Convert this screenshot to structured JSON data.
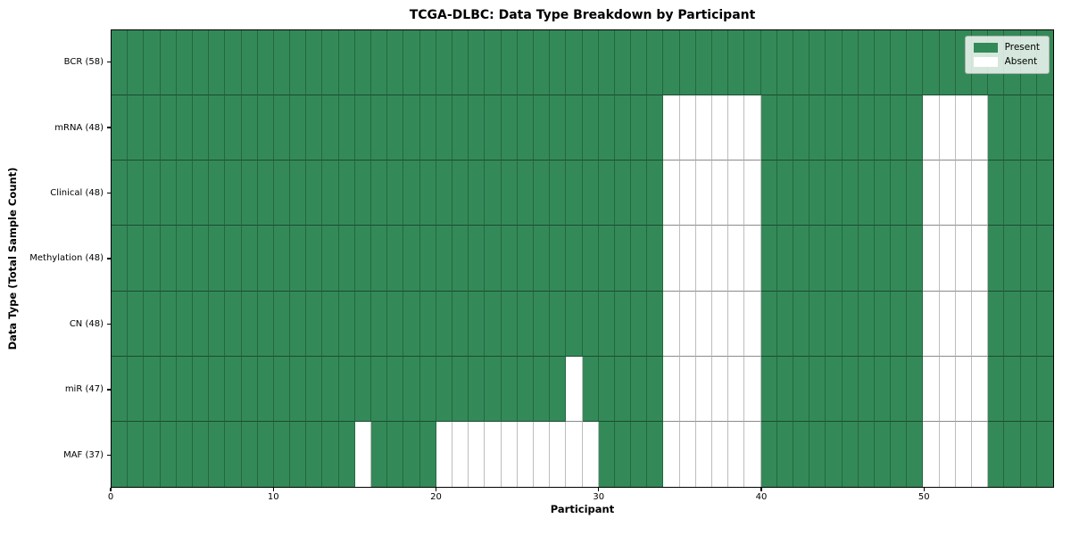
{
  "chart_data": {
    "type": "heatmap",
    "title": "TCGA-DLBC: Data Type Breakdown by Participant",
    "xlabel": "Participant",
    "ylabel": "Data Type (Total Sample Count)",
    "x_ticks": [
      0,
      10,
      20,
      30,
      40,
      50
    ],
    "x_range": [
      0,
      58
    ],
    "n_participants": 58,
    "grid": true,
    "legend_position": "upper right",
    "legend": [
      {
        "label": "Present",
        "value": "present"
      },
      {
        "label": "Absent",
        "value": "absent"
      }
    ],
    "colors": {
      "present": "#338a58",
      "absent": "#ffffff"
    },
    "rows": [
      {
        "label": "BCR (58)",
        "data_type": "BCR",
        "present_count": 58,
        "absent_participants": []
      },
      {
        "label": "mRNA (48)",
        "data_type": "mRNA",
        "present_count": 48,
        "absent_participants": [
          34,
          35,
          36,
          37,
          38,
          39,
          50,
          51,
          52,
          53
        ]
      },
      {
        "label": "Clinical (48)",
        "data_type": "Clinical",
        "present_count": 48,
        "absent_participants": [
          34,
          35,
          36,
          37,
          38,
          39,
          50,
          51,
          52,
          53
        ]
      },
      {
        "label": "Methylation (48)",
        "data_type": "Methylation",
        "present_count": 48,
        "absent_participants": [
          34,
          35,
          36,
          37,
          38,
          39,
          50,
          51,
          52,
          53
        ]
      },
      {
        "label": "CN (48)",
        "data_type": "CN",
        "present_count": 48,
        "absent_participants": [
          34,
          35,
          36,
          37,
          38,
          39,
          50,
          51,
          52,
          53
        ]
      },
      {
        "label": "miR (47)",
        "data_type": "miR",
        "present_count": 47,
        "absent_participants": [
          28,
          34,
          35,
          36,
          37,
          38,
          39,
          50,
          51,
          52,
          53
        ]
      },
      {
        "label": "MAF (37)",
        "data_type": "MAF",
        "present_count": 37,
        "absent_participants": [
          15,
          20,
          21,
          22,
          23,
          24,
          25,
          26,
          27,
          28,
          29,
          34,
          35,
          36,
          37,
          38,
          39,
          50,
          51,
          52,
          53
        ]
      }
    ]
  }
}
